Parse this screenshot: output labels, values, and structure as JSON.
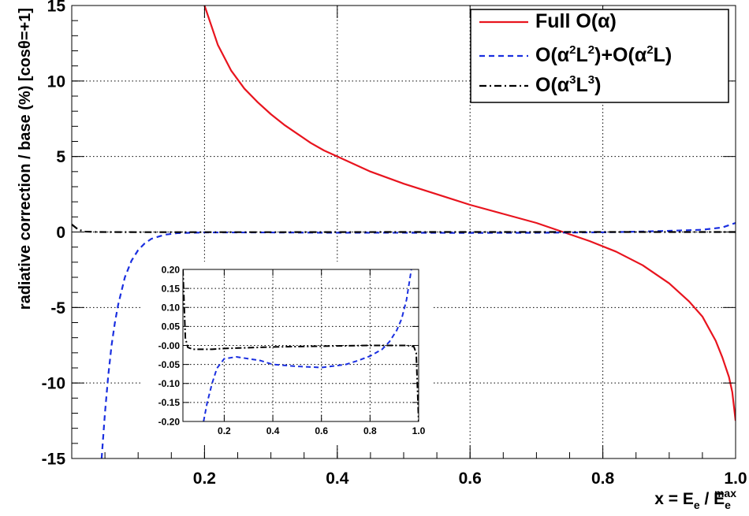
{
  "chart_data": [
    {
      "type": "line",
      "ylabel": "radiative correction / base (%) [cosθ=+1]",
      "xlabel": {
        "prefix": "x = E",
        "sub1": "e",
        "mid": " / E",
        "sub2": "e",
        "sup2": "max"
      },
      "xlim": [
        0.0,
        1.0
      ],
      "ylim": [
        -15,
        15
      ],
      "xticks": [
        0.2,
        0.4,
        0.6,
        0.8,
        1.0
      ],
      "xtick_labels": [
        "0.2",
        "0.4",
        "0.6",
        "0.8",
        "1.0"
      ],
      "yticks": [
        -15,
        -10,
        -5,
        0,
        5,
        10,
        15
      ],
      "ytick_labels": [
        "-15",
        "-10",
        "-5",
        "0",
        "5",
        "10",
        "15"
      ],
      "grid": true,
      "legend_position": "top-right",
      "legend": [
        {
          "parts": [
            {
              "t": "Full O(",
              "s": "n"
            },
            {
              "t": "α",
              "s": "n"
            },
            {
              "t": ")",
              "s": "n"
            }
          ]
        },
        {
          "parts": [
            {
              "t": "O(",
              "s": "n"
            },
            {
              "t": "α",
              "s": "n"
            },
            {
              "t": "2",
              "s": "sup"
            },
            {
              "t": "L",
              "s": "n"
            },
            {
              "t": "2",
              "s": "sup"
            },
            {
              "t": ")+O(",
              "s": "n"
            },
            {
              "t": "α",
              "s": "n"
            },
            {
              "t": "2",
              "s": "sup"
            },
            {
              "t": "L)",
              "s": "n"
            }
          ]
        },
        {
          "parts": [
            {
              "t": "O(",
              "s": "n"
            },
            {
              "t": "α",
              "s": "n"
            },
            {
              "t": "3",
              "s": "sup"
            },
            {
              "t": "L",
              "s": "n"
            },
            {
              "t": "3",
              "s": "sup"
            },
            {
              "t": ")",
              "s": "n"
            }
          ]
        }
      ],
      "series": [
        {
          "color": "#e8141e",
          "dash": "none",
          "x": [
            0.2,
            0.22,
            0.24,
            0.26,
            0.28,
            0.3,
            0.32,
            0.34,
            0.36,
            0.38,
            0.4,
            0.45,
            0.5,
            0.55,
            0.6,
            0.65,
            0.7,
            0.74,
            0.78,
            0.82,
            0.86,
            0.9,
            0.93,
            0.95,
            0.97,
            0.98,
            0.99,
            0.995,
            1.0
          ],
          "y": [
            15.0,
            12.4,
            10.7,
            9.5,
            8.6,
            7.8,
            7.1,
            6.5,
            5.9,
            5.4,
            5.0,
            4.0,
            3.2,
            2.5,
            1.8,
            1.2,
            0.6,
            0.0,
            -0.6,
            -1.3,
            -2.2,
            -3.4,
            -4.6,
            -5.6,
            -7.2,
            -8.3,
            -9.6,
            -10.6,
            -12.5
          ]
        },
        {
          "color": "#1a2fe0",
          "dash": "7,5",
          "x": [
            0.045,
            0.05,
            0.055,
            0.06,
            0.065,
            0.07,
            0.08,
            0.09,
            0.1,
            0.11,
            0.12,
            0.14,
            0.16,
            0.2,
            0.3,
            0.4,
            0.5,
            0.6,
            0.7,
            0.8,
            0.85,
            0.9,
            0.95,
            0.98,
            1.0
          ],
          "y": [
            -15.0,
            -12.0,
            -9.5,
            -7.5,
            -6.0,
            -4.8,
            -3.0,
            -1.9,
            -1.2,
            -0.75,
            -0.45,
            -0.18,
            -0.07,
            -0.03,
            -0.03,
            -0.05,
            -0.05,
            -0.06,
            -0.05,
            -0.02,
            0.02,
            0.08,
            0.15,
            0.3,
            0.6
          ]
        },
        {
          "color": "#000000",
          "dash": "9,4,2,4",
          "x": [
            0.0,
            0.01,
            0.02,
            0.04,
            0.1,
            0.3,
            0.5,
            0.7,
            0.9,
            0.95,
            0.99,
            1.0
          ],
          "y": [
            0.5,
            0.15,
            0.03,
            0.0,
            -0.01,
            -0.01,
            0.0,
            0.0,
            0.0,
            0.0,
            0.0,
            0.0
          ]
        }
      ]
    },
    {
      "type": "line",
      "xlim": [
        0.03,
        1.0
      ],
      "ylim": [
        -0.2,
        0.2
      ],
      "xticks": [
        0.2,
        0.4,
        0.6,
        0.8,
        1.0
      ],
      "xtick_labels": [
        "0.2",
        "0.4",
        "0.6",
        "0.8",
        "1.0"
      ],
      "yticks": [
        -0.2,
        -0.15,
        -0.1,
        -0.05,
        0.0,
        0.05,
        0.1,
        0.15,
        0.2
      ],
      "ytick_labels": [
        "-0.20",
        "-0.15",
        "-0.10",
        "-0.05",
        "-0.00",
        "0.05",
        "0.10",
        "0.15",
        "0.20"
      ],
      "grid": true,
      "series": [
        {
          "color": "#1a2fe0",
          "dash": "6,4",
          "x": [
            0.115,
            0.13,
            0.15,
            0.17,
            0.2,
            0.25,
            0.3,
            0.35,
            0.4,
            0.5,
            0.6,
            0.7,
            0.75,
            0.8,
            0.85,
            0.88,
            0.91,
            0.93,
            0.95,
            0.96,
            0.97
          ],
          "y": [
            -0.2,
            -0.15,
            -0.1,
            -0.06,
            -0.035,
            -0.03,
            -0.035,
            -0.04,
            -0.05,
            -0.055,
            -0.058,
            -0.05,
            -0.04,
            -0.028,
            -0.01,
            0.01,
            0.04,
            0.07,
            0.12,
            0.16,
            0.2
          ]
        },
        {
          "color": "#000000",
          "dash": "8,3,2,3",
          "x": [
            0.03,
            0.04,
            0.05,
            0.07,
            0.1,
            0.15,
            0.2,
            0.3,
            0.4,
            0.5,
            0.6,
            0.7,
            0.8,
            0.9,
            0.95,
            0.98,
            0.99,
            1.0
          ],
          "y": [
            0.2,
            0.02,
            -0.005,
            -0.01,
            -0.01,
            -0.01,
            -0.008,
            -0.006,
            -0.004,
            -0.003,
            -0.002,
            -0.001,
            0.0,
            0.0,
            0.0,
            -0.003,
            -0.02,
            -0.2
          ]
        }
      ]
    }
  ]
}
